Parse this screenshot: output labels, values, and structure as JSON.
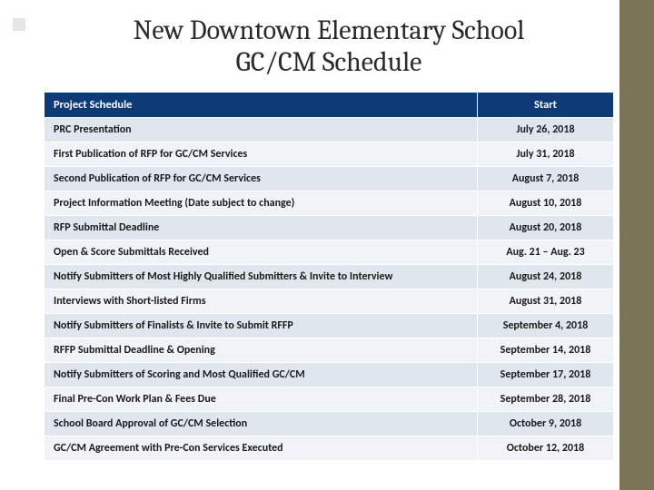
{
  "title_line1": "New Downtown Elementary School",
  "title_line2": "GC/CM Schedule",
  "table": {
    "header": {
      "col1": "Project Schedule",
      "col2": "Start"
    },
    "rows": [
      {
        "task": "PRC Presentation",
        "date": "July 26, 2018"
      },
      {
        "task": "First Publication of RFP for GC/CM Services",
        "date": "July 31, 2018"
      },
      {
        "task": "Second Publication of RFP for GC/CM Services",
        "date": "August 7, 2018"
      },
      {
        "task": "Project Information Meeting (Date subject to change)",
        "date": "August 10, 2018"
      },
      {
        "task": "RFP Submittal Deadline",
        "date": "August 20, 2018"
      },
      {
        "task": "Open & Score Submittals Received",
        "date": "Aug. 21 – Aug. 23"
      },
      {
        "task": "Notify Submitters of Most Highly Qualified Submitters & Invite to Interview",
        "date": "August 24, 2018"
      },
      {
        "task": "Interviews with Short-listed Firms",
        "date": "August 31, 2018"
      },
      {
        "task": "Notify Submitters of Finalists & Invite to Submit RFFP",
        "date": "September 4, 2018"
      },
      {
        "task": "RFFP Submittal Deadline & Opening",
        "date": "September 14, 2018"
      },
      {
        "task": "Notify Submitters of Scoring and Most Qualified GC/CM",
        "date": "September 17, 2018"
      },
      {
        "task": "Final Pre-Con Work Plan & Fees Due",
        "date": "September 28, 2018"
      },
      {
        "task": "School Board Approval of GC/CM Selection",
        "date": "October 9, 2018"
      },
      {
        "task": "GC/CM Agreement with Pre-Con Services Executed",
        "date": "October 12, 2018"
      }
    ]
  },
  "colors": {
    "header_bg": "#0f3a78",
    "row_odd": "#dfe6ee",
    "row_even": "#f0f3f7",
    "sidebar": "#7b7454"
  }
}
